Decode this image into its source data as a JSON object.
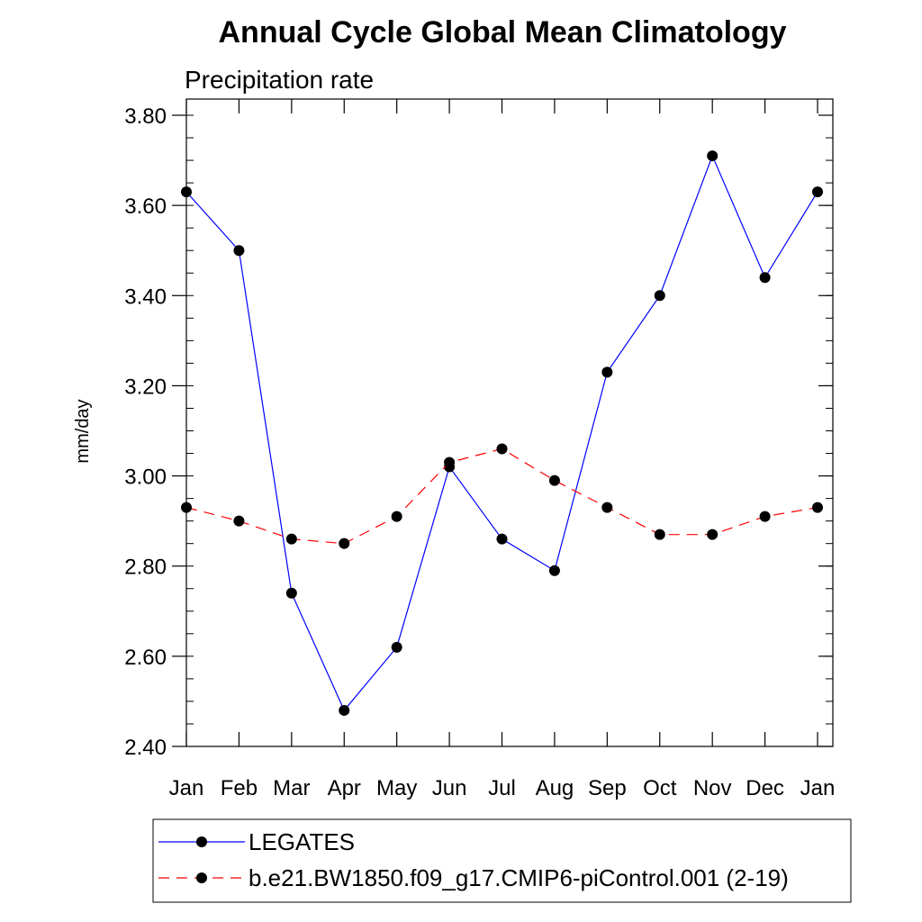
{
  "chart_data": {
    "type": "line",
    "title": "Annual Cycle Global Mean Climatology",
    "subtitle": "Precipitation rate",
    "ylabel": "mm/day",
    "xlabel": "",
    "categories": [
      "Jan",
      "Feb",
      "Mar",
      "Apr",
      "May",
      "Jun",
      "Jul",
      "Aug",
      "Sep",
      "Oct",
      "Nov",
      "Dec",
      "Jan"
    ],
    "ylim": [
      2.4,
      3.8
    ],
    "yticks": [
      "2.40",
      "2.60",
      "2.80",
      "3.00",
      "3.20",
      "3.40",
      "3.60",
      "3.80"
    ],
    "grid": false,
    "legend_position": "bottom",
    "series": [
      {
        "name": "LEGATES",
        "color": "#0000ff",
        "line_style": "solid",
        "marker": "circle",
        "values": [
          3.63,
          3.5,
          2.74,
          2.48,
          2.62,
          3.02,
          2.86,
          2.79,
          3.23,
          3.4,
          3.71,
          3.44,
          3.63
        ]
      },
      {
        "name": "b.e21.BW1850.f09_g17.CMIP6-piControl.001 (2-19)",
        "color": "#ff0000",
        "line_style": "dashed",
        "marker": "circle",
        "values": [
          2.93,
          2.9,
          2.86,
          2.85,
          2.91,
          3.03,
          3.06,
          2.99,
          2.93,
          2.87,
          2.87,
          2.91,
          2.93
        ]
      }
    ]
  }
}
